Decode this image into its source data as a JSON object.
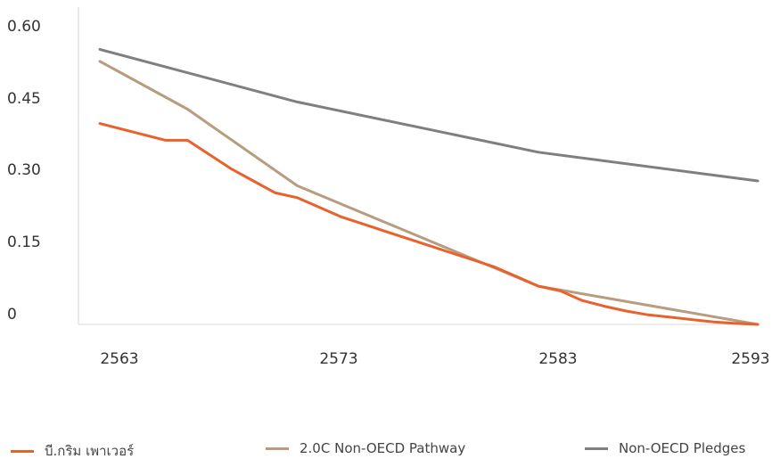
{
  "chart_data": {
    "type": "line",
    "x_ticks": [
      "2563",
      "2573",
      "2583",
      "2593"
    ],
    "y_ticks": [
      "0",
      "0.15",
      "0.30",
      "0.45",
      "0.60"
    ],
    "xlim": [
      2562,
      2593
    ],
    "ylim": [
      0,
      0.6
    ],
    "grid": false,
    "legend_position": "bottom",
    "series": [
      {
        "name": "บี.กริม เพาเวอร์",
        "color": "#E8622C",
        "x": [
          2563,
          2566,
          2567,
          2568,
          2569,
          2570,
          2571,
          2572,
          2573,
          2574,
          2575,
          2576,
          2577,
          2578,
          2579,
          2580,
          2581,
          2582,
          2583,
          2584,
          2585,
          2586,
          2587,
          2588,
          2589,
          2590,
          2591,
          2592,
          2593
        ],
        "y": [
          0.42,
          0.385,
          0.385,
          0.355,
          0.325,
          0.3,
          0.275,
          0.265,
          0.245,
          0.225,
          0.21,
          0.195,
          0.18,
          0.165,
          0.15,
          0.135,
          0.12,
          0.1,
          0.08,
          0.07,
          0.05,
          0.038,
          0.028,
          0.02,
          0.015,
          0.01,
          0.005,
          0.002,
          0.0
        ]
      },
      {
        "name": "2.0C Non-OECD Pathway",
        "color": "#B89C7F",
        "x": [
          2563,
          2567,
          2572,
          2583,
          2593
        ],
        "y": [
          0.55,
          0.45,
          0.29,
          0.08,
          0.0
        ]
      },
      {
        "name": "Non-OECD Pledges",
        "color": "#7F7F80",
        "x": [
          2563,
          2572,
          2583,
          2593
        ],
        "y": [
          0.575,
          0.465,
          0.36,
          0.3
        ]
      }
    ]
  }
}
